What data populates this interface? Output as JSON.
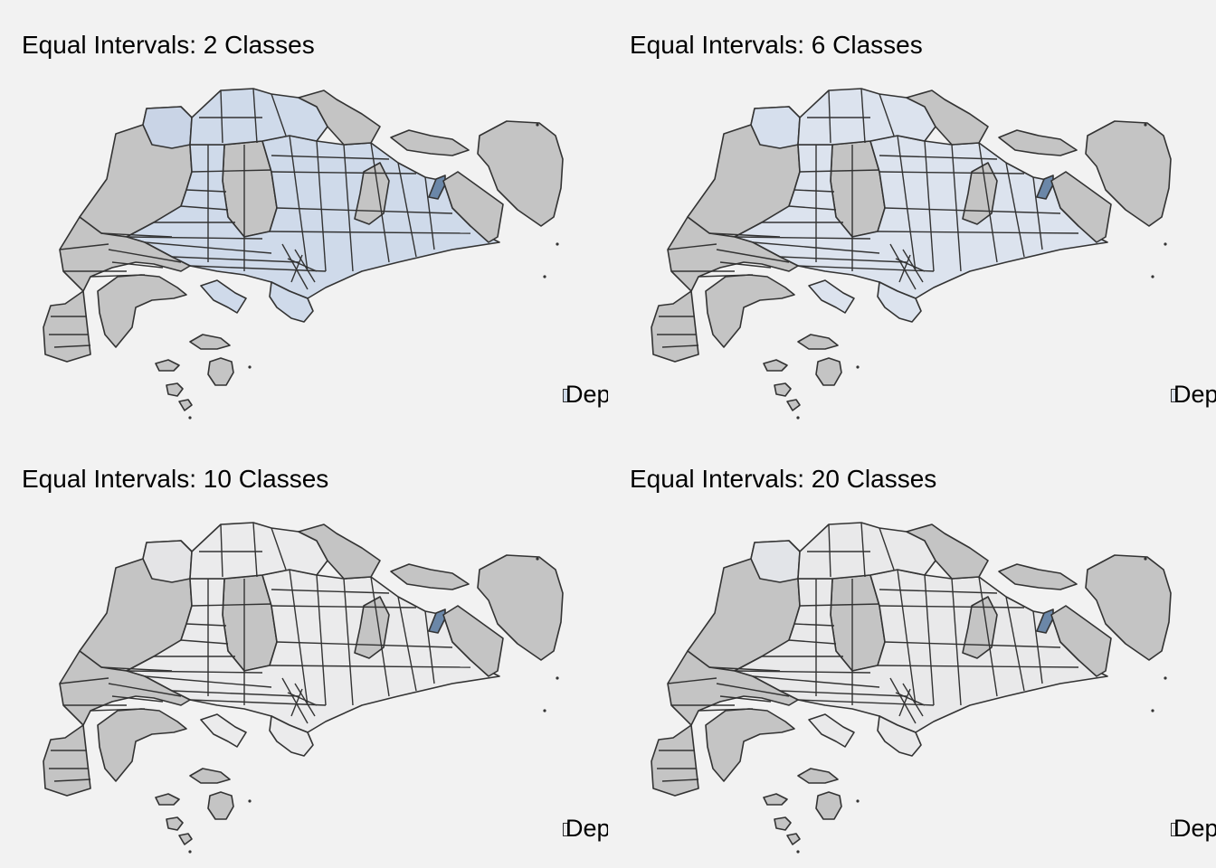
{
  "colors": {
    "background": "#f2f2f2",
    "no_data": "#c4c4c4",
    "highlight": "#6b87a8",
    "border": "#333333"
  },
  "legend_label": "Dep",
  "panels": [
    {
      "title": "Equal Intervals: 2 Classes",
      "classes": 2,
      "fill": "#cfdaea",
      "islet_fill": "#c9d4e6"
    },
    {
      "title": "Equal Intervals: 6 Classes",
      "classes": 6,
      "fill": "#dce3ee",
      "islet_fill": "#d6dfed"
    },
    {
      "title": "Equal Intervals: 10 Classes",
      "classes": 10,
      "fill": "#ebebec",
      "islet_fill": "#e4e4e6"
    },
    {
      "title": "Equal Intervals: 20 Classes",
      "classes": 20,
      "fill": "#e9e9ea",
      "islet_fill": "#e2e4e8"
    }
  ]
}
